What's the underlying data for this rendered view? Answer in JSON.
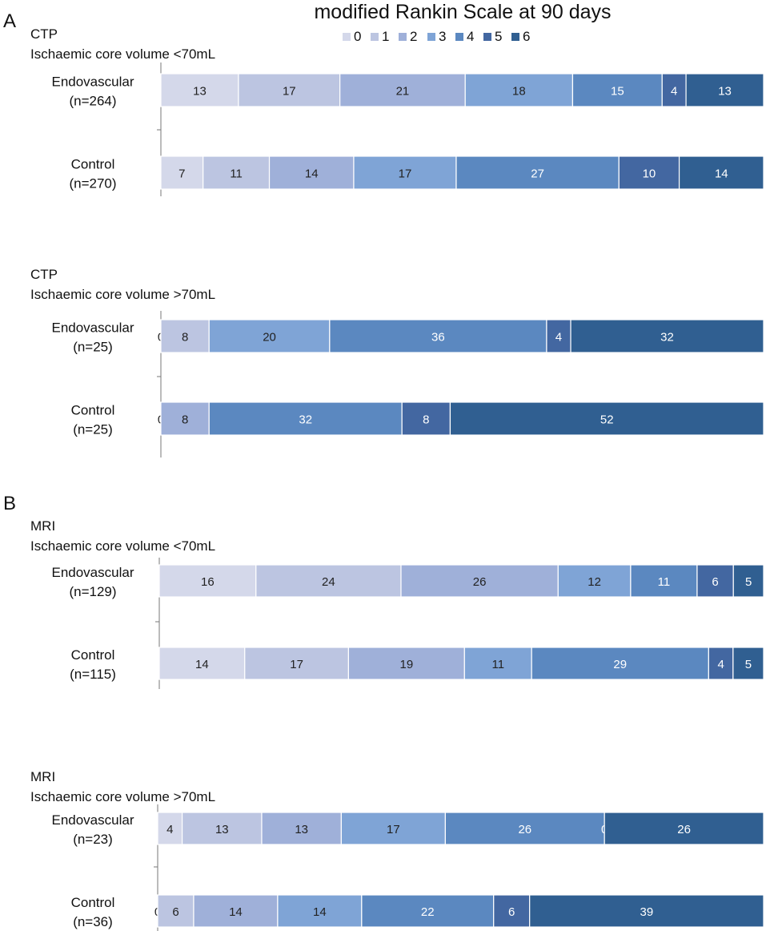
{
  "title": "modified Rankin Scale at 90 days",
  "legend": {
    "entries": [
      {
        "label": "0",
        "color": "#d4d8ea"
      },
      {
        "label": "1",
        "color": "#bcc5e1"
      },
      {
        "label": "2",
        "color": "#9fb0d9"
      },
      {
        "label": "3",
        "color": "#7fa4d6"
      },
      {
        "label": "4",
        "color": "#5b88c0"
      },
      {
        "label": "5",
        "color": "#4367a1"
      },
      {
        "label": "6",
        "color": "#305f91"
      }
    ]
  },
  "panels": [
    {
      "letter": "A"
    },
    {
      "letter": "B"
    }
  ],
  "chart_data": [
    {
      "type": "bar",
      "orientation": "horizontal",
      "stacked": true,
      "panel": "A",
      "subtitle": "CTP",
      "subtitle2": "Ischaemic core volume <70mL",
      "categories": [
        {
          "line1": "Endovascular",
          "line2": "(n=264)"
        },
        {
          "line1": "Control",
          "line2": "(n=270)"
        }
      ],
      "series": [
        {
          "name": "0",
          "values": [
            13,
            7
          ]
        },
        {
          "name": "1",
          "values": [
            17,
            11
          ]
        },
        {
          "name": "2",
          "values": [
            21,
            14
          ]
        },
        {
          "name": "3",
          "values": [
            18,
            17
          ]
        },
        {
          "name": "4",
          "values": [
            15,
            27
          ]
        },
        {
          "name": "5",
          "values": [
            4,
            10
          ]
        },
        {
          "name": "6",
          "values": [
            13,
            14
          ]
        }
      ]
    },
    {
      "type": "bar",
      "orientation": "horizontal",
      "stacked": true,
      "panel": "A",
      "subtitle": "CTP",
      "subtitle2": "Ischaemic core volume >70mL",
      "categories": [
        {
          "line1": "Endovascular",
          "line2": "(n=25)"
        },
        {
          "line1": "Control",
          "line2": "(n=25)"
        }
      ],
      "series": [
        {
          "name": "0",
          "values": [
            0,
            0
          ]
        },
        {
          "name": "1",
          "values": [
            8,
            0
          ]
        },
        {
          "name": "2",
          "values": [
            0,
            8
          ]
        },
        {
          "name": "3",
          "values": [
            20,
            0
          ]
        },
        {
          "name": "4",
          "values": [
            36,
            32
          ]
        },
        {
          "name": "5",
          "values": [
            4,
            8
          ]
        },
        {
          "name": "6",
          "values": [
            32,
            52
          ]
        }
      ]
    },
    {
      "type": "bar",
      "orientation": "horizontal",
      "stacked": true,
      "panel": "B",
      "subtitle": "MRI",
      "subtitle2": "Ischaemic core volume <70mL",
      "categories": [
        {
          "line1": "Endovascular",
          "line2": "(n=129)"
        },
        {
          "line1": "Control",
          "line2": "(n=115)"
        }
      ],
      "series": [
        {
          "name": "0",
          "values": [
            16,
            14
          ]
        },
        {
          "name": "1",
          "values": [
            24,
            17
          ]
        },
        {
          "name": "2",
          "values": [
            26,
            19
          ]
        },
        {
          "name": "3",
          "values": [
            12,
            11
          ]
        },
        {
          "name": "4",
          "values": [
            11,
            29
          ]
        },
        {
          "name": "5",
          "values": [
            6,
            4
          ]
        },
        {
          "name": "6",
          "values": [
            5,
            5
          ]
        }
      ]
    },
    {
      "type": "bar",
      "orientation": "horizontal",
      "stacked": true,
      "panel": "B",
      "subtitle": "MRI",
      "subtitle2": "Ischaemic core volume >70mL",
      "categories": [
        {
          "line1": "Endovascular",
          "line2": "(n=23)"
        },
        {
          "line1": "Control",
          "line2": "(n=36)"
        }
      ],
      "series": [
        {
          "name": "0",
          "values": [
            4,
            0
          ]
        },
        {
          "name": "1",
          "values": [
            13,
            6
          ]
        },
        {
          "name": "2",
          "values": [
            13,
            14
          ]
        },
        {
          "name": "3",
          "values": [
            17,
            14
          ]
        },
        {
          "name": "4",
          "values": [
            26,
            22
          ]
        },
        {
          "name": "5",
          "values": [
            0,
            6
          ]
        },
        {
          "name": "6",
          "values": [
            26,
            39
          ]
        }
      ]
    }
  ]
}
